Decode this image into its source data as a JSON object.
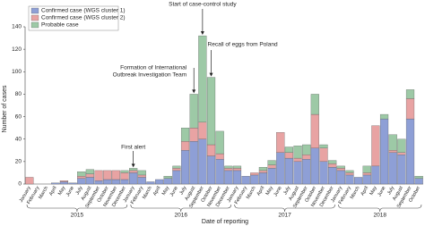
{
  "chart_data": {
    "type": "stacked-bar",
    "y_label": "Number of cases",
    "x_label": "Date of reporting",
    "categories": [
      "January",
      "February",
      "March",
      "April",
      "May",
      "June",
      "July",
      "August",
      "September",
      "October",
      "November",
      "December",
      "January",
      "February",
      "March",
      "April",
      "May",
      "June",
      "July",
      "August",
      "September",
      "October",
      "November",
      "December",
      "January",
      "February",
      "March",
      "April",
      "May",
      "June",
      "July",
      "August",
      "September",
      "October",
      "November",
      "December",
      "January",
      "February",
      "March",
      "April",
      "May",
      "June",
      "July",
      "August",
      "September",
      "October"
    ],
    "years": [
      "2015",
      "2016",
      "2017",
      "2018"
    ],
    "series": [
      {
        "name": "Confirmed case (WGS cluster 1)",
        "color": "#8e9fd6",
        "values": [
          0,
          0,
          0,
          1,
          2,
          1,
          5,
          6,
          3,
          4,
          4,
          4,
          10,
          6,
          2,
          4,
          5,
          12,
          30,
          38,
          40,
          25,
          22,
          12,
          12,
          7,
          8,
          10,
          14,
          28,
          23,
          20,
          22,
          32,
          20,
          15,
          12,
          8,
          6,
          8,
          16,
          58,
          28,
          26,
          58,
          5
        ]
      },
      {
        "name": "Confirmed case (WGS cluster 2)",
        "color": "#e8a3a3",
        "values": [
          6,
          0,
          0,
          0,
          1,
          0,
          2,
          3,
          9,
          8,
          8,
          6,
          2,
          2,
          0,
          0,
          0,
          2,
          8,
          12,
          15,
          10,
          5,
          2,
          2,
          0,
          2,
          2,
          3,
          18,
          5,
          3,
          4,
          30,
          12,
          3,
          2,
          2,
          0,
          2,
          36,
          0,
          2,
          2,
          18,
          0
        ]
      },
      {
        "name": "Probable case",
        "color": "#9dc9a6",
        "values": [
          0,
          0,
          0,
          0,
          0,
          0,
          4,
          4,
          0,
          0,
          0,
          2,
          2,
          4,
          0,
          0,
          2,
          2,
          12,
          30,
          77,
          60,
          20,
          2,
          2,
          0,
          0,
          3,
          4,
          0,
          5,
          11,
          9,
          18,
          3,
          3,
          2,
          2,
          0,
          6,
          0,
          4,
          14,
          12,
          8,
          2
        ]
      }
    ],
    "ylim": [
      0,
      140
    ],
    "yticks": [
      0,
      20,
      40,
      60,
      80,
      100,
      120,
      140
    ],
    "annotations": [
      "First alert",
      "Formation of International",
      "Outbreak Investigation Team",
      "Start of case-control study",
      "Recall of eggs from Poland"
    ]
  }
}
